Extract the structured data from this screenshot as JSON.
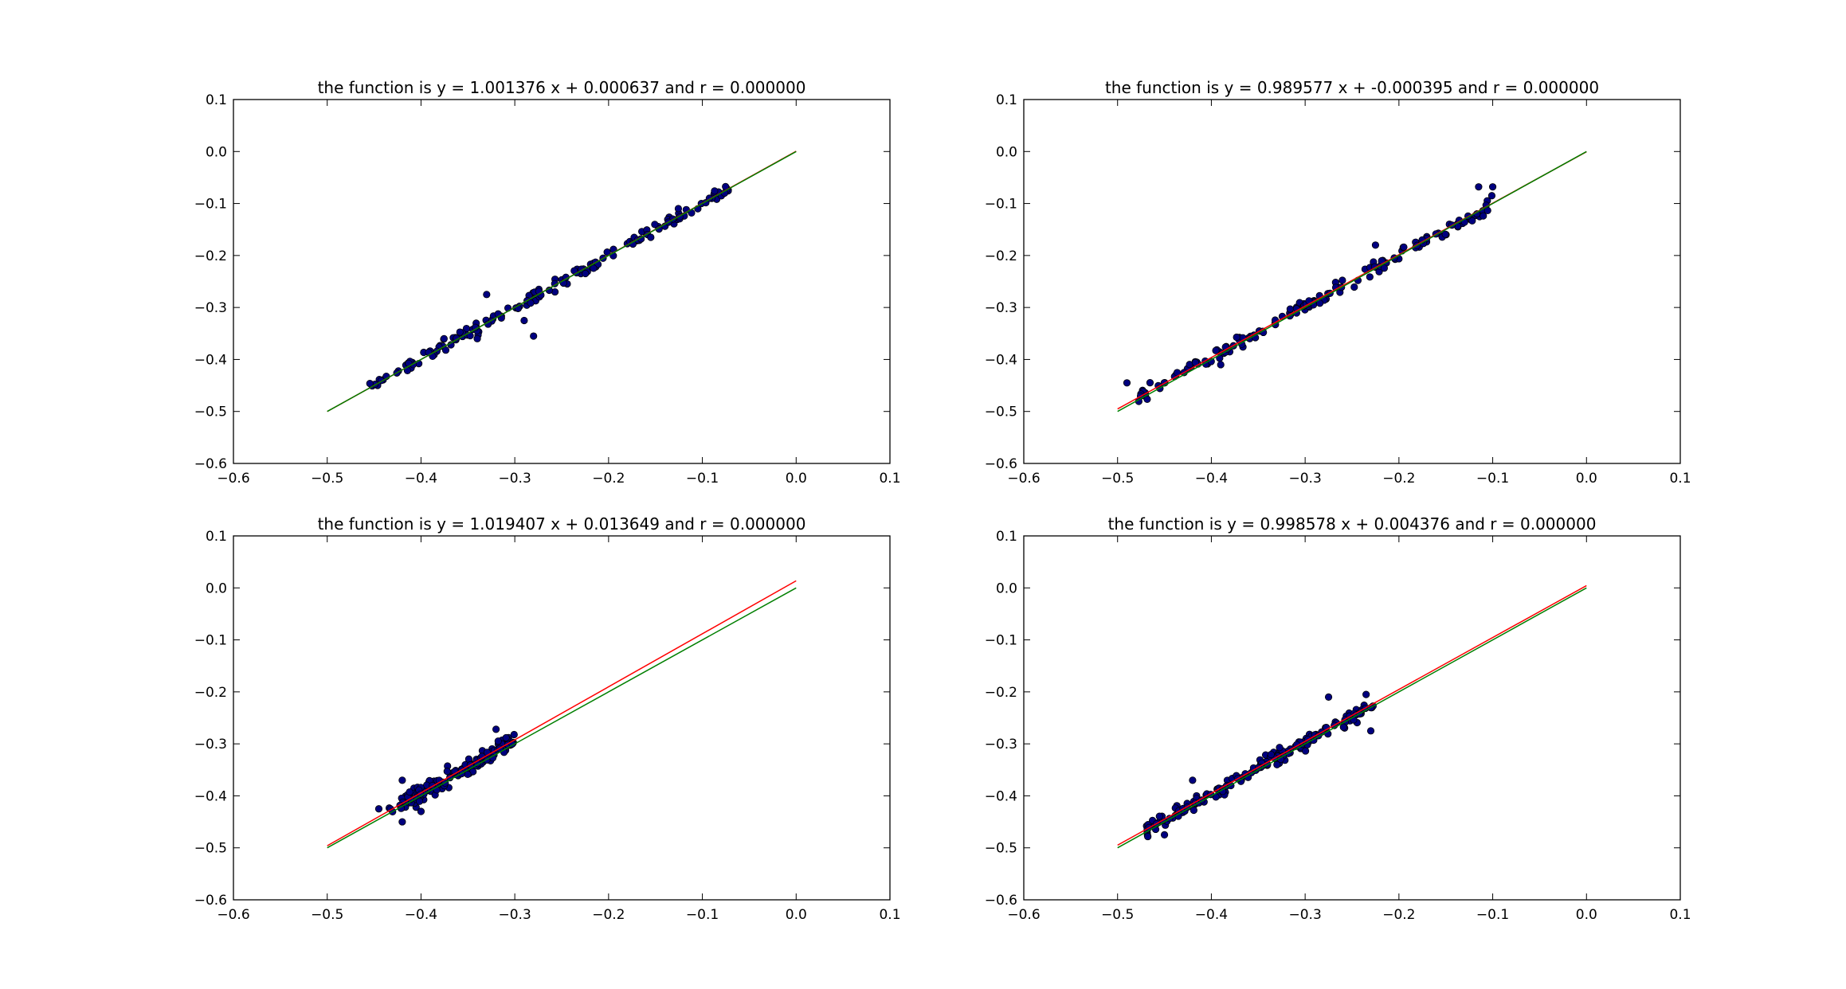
{
  "chart_data": [
    {
      "type": "scatter",
      "title": "the function is y = 1.001376 x + 0.000637 and r = 0.000000",
      "xlim": [
        -0.6,
        0.1
      ],
      "ylim": [
        -0.6,
        0.1
      ],
      "xticks": [
        "−0.6",
        "−0.5",
        "−0.4",
        "−0.3",
        "−0.2",
        "−0.1",
        "0.0",
        "0.1"
      ],
      "yticks": [
        "−0.6",
        "−0.5",
        "−0.4",
        "−0.3",
        "−0.2",
        "−0.1",
        "0.0",
        "0.1"
      ],
      "grid": false,
      "series": [
        {
          "kind": "scatter",
          "color": "#00007f",
          "edge": "#000000",
          "x_range": [
            -0.46,
            -0.07
          ],
          "slope": 1.0,
          "intercept": 0.0,
          "noise": 0.01,
          "count": 150,
          "outliers": [
            [
              -0.33,
              -0.275
            ],
            [
              -0.28,
              -0.355
            ],
            [
              -0.29,
              -0.325
            ],
            [
              -0.34,
              -0.36
            ],
            [
              -0.155,
              -0.165
            ]
          ]
        },
        {
          "kind": "line",
          "color": "#ff0000",
          "slope": 1.001376,
          "intercept": 0.000637,
          "x": [
            -0.5,
            0.0
          ]
        },
        {
          "kind": "line",
          "color": "#007f00",
          "slope": 1.0,
          "intercept": 0.0,
          "x": [
            -0.5,
            0.0
          ]
        }
      ]
    },
    {
      "type": "scatter",
      "title": "the function is y = 0.989577 x + -0.000395 and r = 0.000000",
      "xlim": [
        -0.6,
        0.1
      ],
      "ylim": [
        -0.6,
        0.1
      ],
      "xticks": [
        "−0.6",
        "−0.5",
        "−0.4",
        "−0.3",
        "−0.2",
        "−0.1",
        "0.0",
        "0.1"
      ],
      "yticks": [
        "−0.6",
        "−0.5",
        "−0.4",
        "−0.3",
        "−0.2",
        "−0.1",
        "0.0",
        "0.1"
      ],
      "grid": false,
      "series": [
        {
          "kind": "scatter",
          "color": "#00007f",
          "edge": "#000000",
          "x_range": [
            -0.48,
            -0.1
          ],
          "slope": 0.99,
          "intercept": 0.0,
          "noise": 0.01,
          "count": 150,
          "outliers": [
            [
              -0.49,
              -0.445
            ],
            [
              -0.115,
              -0.068
            ],
            [
              -0.1,
              -0.068
            ],
            [
              -0.39,
              -0.41
            ],
            [
              -0.225,
              -0.18
            ]
          ]
        },
        {
          "kind": "line",
          "color": "#ff0000",
          "slope": 0.989577,
          "intercept": -0.000395,
          "x": [
            -0.5,
            0.0
          ]
        },
        {
          "kind": "line",
          "color": "#007f00",
          "slope": 1.0,
          "intercept": 0.0,
          "x": [
            -0.5,
            0.0
          ]
        }
      ]
    },
    {
      "type": "scatter",
      "title": "the function is y = 1.019407 x + 0.013649 and r = 0.000000",
      "xlim": [
        -0.6,
        0.1
      ],
      "ylim": [
        -0.6,
        0.1
      ],
      "xticks": [
        "−0.6",
        "−0.5",
        "−0.4",
        "−0.3",
        "−0.2",
        "−0.1",
        "0.0",
        "0.1"
      ],
      "yticks": [
        "−0.6",
        "−0.5",
        "−0.4",
        "−0.3",
        "−0.2",
        "−0.1",
        "0.0",
        "0.1"
      ],
      "grid": false,
      "series": [
        {
          "kind": "scatter",
          "color": "#00007f",
          "edge": "#000000",
          "x_range": [
            -0.435,
            -0.3
          ],
          "slope": 1.02,
          "intercept": 0.014,
          "noise": 0.012,
          "count": 150,
          "outliers": [
            [
              -0.32,
              -0.272
            ],
            [
              -0.42,
              -0.37
            ],
            [
              -0.42,
              -0.45
            ],
            [
              -0.4,
              -0.43
            ],
            [
              -0.445,
              -0.425
            ]
          ]
        },
        {
          "kind": "line",
          "color": "#ff0000",
          "slope": 1.019407,
          "intercept": 0.013649,
          "x": [
            -0.5,
            0.0
          ]
        },
        {
          "kind": "line",
          "color": "#007f00",
          "slope": 1.0,
          "intercept": 0.0,
          "x": [
            -0.5,
            0.0
          ]
        }
      ]
    },
    {
      "type": "scatter",
      "title": "the function is y = 0.998578 x + 0.004376 and r = 0.000000",
      "xlim": [
        -0.6,
        0.1
      ],
      "ylim": [
        -0.6,
        0.1
      ],
      "xticks": [
        "−0.6",
        "−0.5",
        "−0.4",
        "−0.3",
        "−0.2",
        "−0.1",
        "0.0",
        "0.1"
      ],
      "yticks": [
        "−0.6",
        "−0.5",
        "−0.4",
        "−0.3",
        "−0.2",
        "−0.1",
        "0.0",
        "0.1"
      ],
      "grid": false,
      "series": [
        {
          "kind": "scatter",
          "color": "#00007f",
          "edge": "#000000",
          "x_range": [
            -0.47,
            -0.225
          ],
          "slope": 1.0,
          "intercept": 0.004,
          "noise": 0.01,
          "count": 170,
          "outliers": [
            [
              -0.275,
              -0.21
            ],
            [
              -0.235,
              -0.205
            ],
            [
              -0.23,
              -0.275
            ],
            [
              -0.33,
              -0.34
            ],
            [
              -0.45,
              -0.475
            ],
            [
              -0.42,
              -0.37
            ]
          ]
        },
        {
          "kind": "line",
          "color": "#ff0000",
          "slope": 0.998578,
          "intercept": 0.004376,
          "x": [
            -0.5,
            0.0
          ]
        },
        {
          "kind": "line",
          "color": "#007f00",
          "slope": 1.0,
          "intercept": 0.0,
          "x": [
            -0.5,
            0.0
          ]
        }
      ]
    }
  ]
}
